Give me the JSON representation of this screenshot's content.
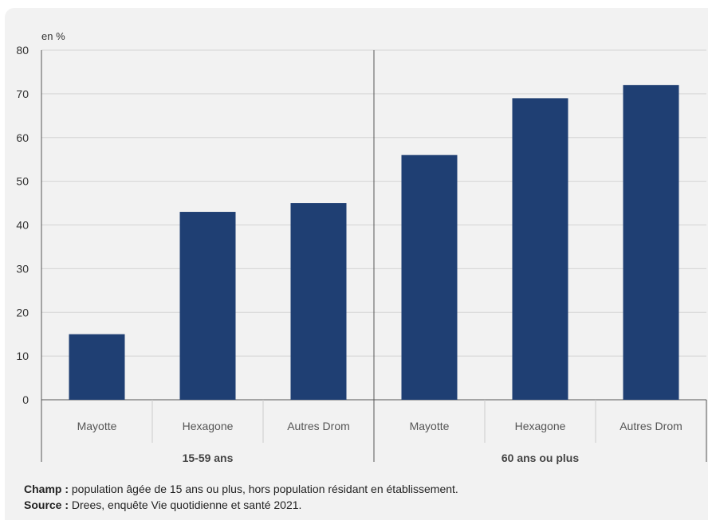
{
  "chart_data": {
    "type": "bar",
    "unit_label": "en %",
    "ylim": [
      0,
      80
    ],
    "yticks": [
      0,
      10,
      20,
      30,
      40,
      50,
      60,
      70,
      80
    ],
    "grid": true,
    "bar_color": "#1f3f73",
    "groups": [
      {
        "name": "15-59 ans",
        "categories": [
          "Mayotte",
          "Hexagone",
          "Autres Drom"
        ],
        "values": [
          15,
          43,
          45
        ]
      },
      {
        "name": "60 ans ou plus",
        "categories": [
          "Mayotte",
          "Hexagone",
          "Autres Drom"
        ],
        "values": [
          56,
          69,
          72
        ]
      }
    ]
  },
  "notes": {
    "champ_label": "Champ :",
    "champ_text": " population âgée de 15 ans ou plus, hors population résidant en établissement.",
    "source_label": "Source :",
    "source_text": " Drees, enquête Vie quotidienne et santé 2021."
  }
}
